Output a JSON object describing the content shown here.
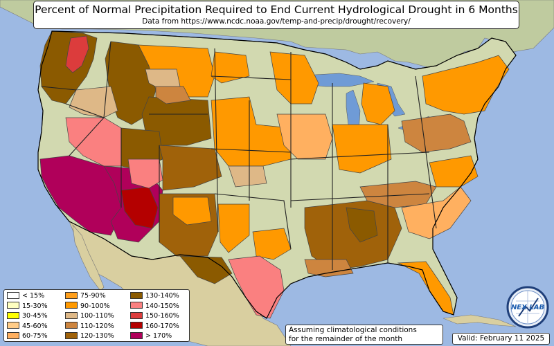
{
  "title": "Percent of Normal Precipitation Required to End Current Hydrological Drought in 6 Months",
  "subtitle": "Data from https://www.ncdc.noaa.gov/temp-and-precip/drought/recovery/",
  "legend": [
    {
      "label": "< 15%",
      "color": "#ffffff"
    },
    {
      "label": "15-30%",
      "color": "#ffffc0"
    },
    {
      "label": "30-45%",
      "color": "#ffff00"
    },
    {
      "label": "45-60%",
      "color": "#ffcc88"
    },
    {
      "label": "60-75%",
      "color": "#ffb060"
    },
    {
      "label": "75-90%",
      "color": "#ff9f1c"
    },
    {
      "label": "90-100%",
      "color": "#ff9900"
    },
    {
      "label": "100-110%",
      "color": "#deb887"
    },
    {
      "label": "110-120%",
      "color": "#cd853f"
    },
    {
      "label": "120-130%",
      "color": "#a0620a"
    },
    {
      "label": "130-140%",
      "color": "#8b5a00"
    },
    {
      "label": "140-150%",
      "color": "#fa8080"
    },
    {
      "label": "150-160%",
      "color": "#dc3c3c"
    },
    {
      "label": "160-170%",
      "color": "#b40000"
    },
    {
      "label": "> 170%",
      "color": "#b0005a"
    }
  ],
  "note": {
    "line1": "Assuming climatological conditions",
    "line2": "for the remainder of the month"
  },
  "valid": "Valid: February 11 2025",
  "logo_text": "NEX LAB",
  "colors": {
    "ocean": "#9db9e3",
    "land": "#c8d3a6",
    "great_lakes": "#6f9bd6"
  }
}
